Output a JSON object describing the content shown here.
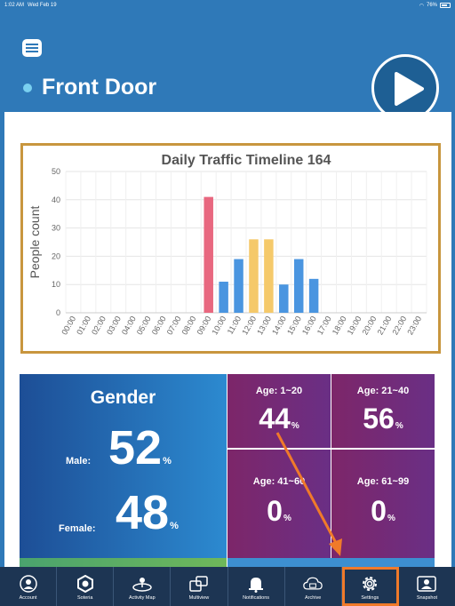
{
  "status_bar": {
    "time": "1:02 AM",
    "date": "Wed Feb 19",
    "battery": "76%",
    "battery_level": 0.76
  },
  "header": {
    "title": "Front Door",
    "menu_icon": "hamburger-menu-icon",
    "play_icon": "play-icon"
  },
  "chart_data": {
    "type": "bar",
    "title": "Daily Traffic Timeline 164",
    "ylabel": "People count",
    "xlabel": "",
    "ylim": [
      0,
      50
    ],
    "yticks": [
      0,
      10,
      20,
      30,
      40,
      50
    ],
    "grid": true,
    "categories": [
      "00:00",
      "01:00",
      "02:00",
      "03:00",
      "04:00",
      "05:00",
      "06:00",
      "07:00",
      "08:00",
      "09:00",
      "10:00",
      "11:00",
      "12:00",
      "13:00",
      "14:00",
      "15:00",
      "16:00",
      "17:00",
      "18:00",
      "19:00",
      "20:00",
      "21:00",
      "22:00",
      "23:00"
    ],
    "values": [
      0,
      0,
      0,
      0,
      0,
      0,
      0,
      0,
      0,
      41,
      11,
      19,
      26,
      26,
      10,
      19,
      12,
      0,
      0,
      0,
      0,
      0,
      0,
      0
    ],
    "bar_colors": {
      "09:00": "#e8677f",
      "12:00": "#f5c96a",
      "13:00": "#f5c96a",
      "default": "#4a95e0"
    }
  },
  "gender": {
    "title": "Gender",
    "male_label": "Male:",
    "male_value": "52",
    "female_label": "Female:",
    "female_value": "48",
    "pct": "%"
  },
  "ages": [
    {
      "label": "Age: 1~20",
      "value": "44",
      "pct": "%"
    },
    {
      "label": "Age: 21~40",
      "value": "56",
      "pct": "%"
    },
    {
      "label": "Age: 41~60",
      "value": "0",
      "pct": "%"
    },
    {
      "label": "Age: 61~99",
      "value": "0",
      "pct": "%"
    }
  ],
  "tabs": [
    {
      "label": "Account",
      "icon": "account-icon"
    },
    {
      "label": "Soteria",
      "icon": "soteria-logo-icon"
    },
    {
      "label": "Activity Map",
      "icon": "activity-map-icon"
    },
    {
      "label": "Multiview",
      "icon": "multiview-icon"
    },
    {
      "label": "Notifications",
      "icon": "notifications-icon"
    },
    {
      "label": "Archive",
      "icon": "archive-cloud-icon"
    },
    {
      "label": "Settings",
      "icon": "settings-gear-icon",
      "active": true
    },
    {
      "label": "Snapshot",
      "icon": "snapshot-icon"
    }
  ],
  "colors": {
    "header_bg": "#2f79b8",
    "tabbar_bg": "#1d3553",
    "accent": "#f07a2a",
    "chart_border": "#c8963e"
  }
}
